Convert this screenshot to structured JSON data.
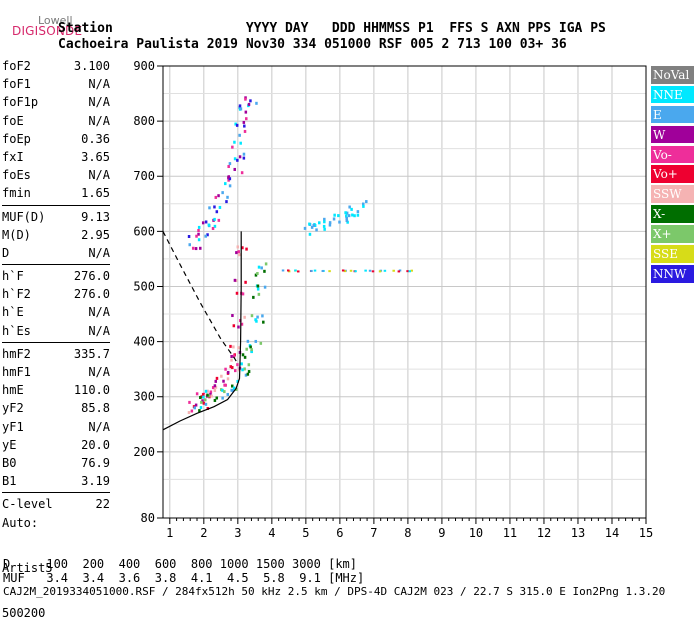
{
  "logo": {
    "line1": "Lowell",
    "line2": "DIGISONDE"
  },
  "header": {
    "line1": "Station                 YYYY DAY   DDD HHMMSS P1  FFS S AXN PPS IGA PS",
    "line2": "Cachoeira Paulista 2019 Nov30 334 051000 RSF 005 2 713 100 03+ 36"
  },
  "params": [
    {
      "label": "foF2",
      "value": "3.100"
    },
    {
      "label": "foF1",
      "value": "N/A"
    },
    {
      "label": "foF1p",
      "value": "N/A"
    },
    {
      "label": "foE",
      "value": "N/A"
    },
    {
      "label": "foEp",
      "value": "0.36"
    },
    {
      "label": "fxI",
      "value": "3.65"
    },
    {
      "label": "foEs",
      "value": "N/A"
    },
    {
      "label": "fmin",
      "value": "1.65"
    },
    {
      "label": "MUF(D)",
      "value": "9.13"
    },
    {
      "label": "M(D)",
      "value": "2.95"
    },
    {
      "label": "D",
      "value": "N/A"
    },
    {
      "label": "h`F",
      "value": "276.0"
    },
    {
      "label": "h`F2",
      "value": "276.0"
    },
    {
      "label": "h`E",
      "value": "N/A"
    },
    {
      "label": "h`Es",
      "value": "N/A"
    },
    {
      "label": "hmF2",
      "value": "335.7"
    },
    {
      "label": "hmF1",
      "value": "N/A"
    },
    {
      "label": "hmE",
      "value": "110.0"
    },
    {
      "label": "yF2",
      "value": "85.8"
    },
    {
      "label": "yF1",
      "value": "N/A"
    },
    {
      "label": "yE",
      "value": "20.0"
    },
    {
      "label": "B0",
      "value": "76.9"
    },
    {
      "label": "B1",
      "value": "3.19"
    },
    {
      "label": "C-level",
      "value": "22"
    }
  ],
  "auto": {
    "line1": "Auto:",
    "line2": "Artist5",
    "line3": "500200"
  },
  "legend": [
    {
      "label": "NoVal",
      "color": "#808080"
    },
    {
      "label": "NNE",
      "color": "#00e8ff"
    },
    {
      "label": "E",
      "color": "#4aa8ee"
    },
    {
      "label": "W",
      "color": "#a0009a"
    },
    {
      "label": "Vo-",
      "color": "#ee2e9a"
    },
    {
      "label": "Vo+",
      "color": "#ee0030"
    },
    {
      "label": "SSW",
      "color": "#f5b3b3"
    },
    {
      "label": "X-",
      "color": "#006e00"
    },
    {
      "label": "X+",
      "color": "#7cc86a"
    },
    {
      "label": "SSE",
      "color": "#d7dc18"
    },
    {
      "label": "NNW",
      "color": "#2a1ae0"
    }
  ],
  "footer": {
    "line1": "D     100  200  400  600  800 1000 1500 3000 [km]",
    "line2": "MUF   3.4  3.4  3.6  3.8  4.1  4.5  5.8  9.1 [MHz]",
    "line3": "CAJ2M_2019334051000.RSF / 284fx512h 50 kHz 2.5 km / DPS-4D CAJ2M 023 / 22.7 S 315.0 E Ion2Png 1.3.20"
  },
  "chart_data": {
    "type": "scatter",
    "x_ticks": [
      "1",
      "2",
      "3",
      "4",
      "5",
      "6",
      "7",
      "8",
      "9",
      "10",
      "11",
      "12",
      "13",
      "14",
      "15"
    ],
    "y_ticks": [
      "80",
      "200",
      "300",
      "400",
      "500",
      "600",
      "700",
      "800",
      "900"
    ],
    "xlim": [
      0.8,
      15
    ],
    "ylim": [
      80,
      900
    ],
    "grid": true,
    "legend_position": "right",
    "traces": [
      {
        "name": "O-trace",
        "x": [
          1.7,
          1.9,
          2.1,
          2.3,
          2.5,
          2.7,
          2.85,
          2.95,
          3.0,
          3.05,
          3.1
        ],
        "y": [
          285,
          295,
          305,
          315,
          328,
          345,
          365,
          390,
          440,
          500,
          560
        ]
      },
      {
        "name": "X-trace",
        "x": [
          1.9,
          2.2,
          2.5,
          2.8,
          3.1,
          3.3,
          3.45,
          3.55,
          3.6,
          3.65
        ],
        "y": [
          290,
          300,
          312,
          328,
          350,
          375,
          400,
          440,
          490,
          530
        ]
      },
      {
        "name": "2F-trace",
        "x": [
          1.7,
          1.9,
          2.1,
          2.3,
          2.5,
          2.7,
          2.9,
          3.0,
          3.1,
          3.2,
          3.35
        ],
        "y": [
          585,
          600,
          615,
          635,
          660,
          690,
          720,
          750,
          790,
          820,
          840
        ]
      },
      {
        "name": "E-oblique",
        "x": [
          5.1,
          5.4,
          5.7,
          6.0,
          6.3,
          6.6
        ],
        "y": [
          608,
          612,
          620,
          628,
          635,
          645
        ]
      },
      {
        "name": "flat-530",
        "x": [
          4.4,
          4.8,
          5.2,
          5.6,
          6.0,
          6.4,
          6.8,
          7.2,
          7.6,
          8.0
        ],
        "y": [
          530,
          530,
          530,
          530,
          530,
          530,
          530,
          530,
          530,
          530
        ]
      },
      {
        "name": "profile",
        "x": [
          0.8,
          1.3,
          1.8,
          2.3,
          2.7,
          2.95,
          3.05,
          3.08,
          3.1,
          3.1
        ],
        "y": [
          240,
          256,
          270,
          282,
          295,
          315,
          333,
          400,
          500,
          600
        ]
      },
      {
        "name": "dashed-model",
        "x": [
          0.8,
          1.3,
          1.9,
          2.5,
          2.9,
          3.0
        ],
        "y": [
          600,
          540,
          470,
          405,
          370,
          360
        ]
      }
    ]
  }
}
